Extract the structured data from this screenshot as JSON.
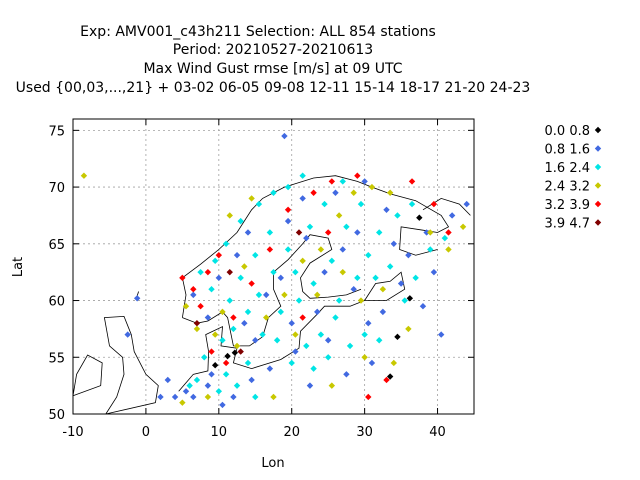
{
  "chart_data": {
    "type": "scatter",
    "title": [
      "Exp: AMV001_c43h211   Selection: ALL    854 stations",
      "Period: 20210527-20210613",
      "Max Wind Gust rmse [m/s] at  09 UTC",
      "Used {00,03,...,21} + 03-02 06-05 09-08 12-11 15-14 18-17 21-20 24-23"
    ],
    "xlabel": "Lon",
    "ylabel": "Lat",
    "xlim": [
      -10,
      45
    ],
    "ylim": [
      50,
      76
    ],
    "xticks": [
      "-10",
      "0",
      "10",
      "20",
      "30",
      "40"
    ],
    "yticks": [
      "50",
      "55",
      "60",
      "65",
      "70",
      "75"
    ],
    "grid": true,
    "legend_position": "right",
    "series": [
      {
        "name": "0.0 0.8",
        "color": "#000000",
        "points": [
          [
            12.2,
            55.4
          ],
          [
            34.5,
            56.8
          ],
          [
            33.5,
            53.3
          ],
          [
            36.2,
            60.2
          ],
          [
            37.5,
            67.3
          ],
          [
            11.2,
            55.1
          ],
          [
            9.5,
            54.3
          ]
        ]
      },
      {
        "name": "0.8 1.6",
        "color": "#4169e1",
        "points": [
          [
            19.0,
            74.5
          ],
          [
            -1.2,
            60.2
          ],
          [
            -2.5,
            57.0
          ],
          [
            3.0,
            53.0
          ],
          [
            5.5,
            52.0
          ],
          [
            8.5,
            52.5
          ],
          [
            12.0,
            51.5
          ],
          [
            14.5,
            53.0
          ],
          [
            20.5,
            55.5
          ],
          [
            25.0,
            56.5
          ],
          [
            30.5,
            58.0
          ],
          [
            32.5,
            59.0
          ],
          [
            35.0,
            61.5
          ],
          [
            38.5,
            66.0
          ],
          [
            42.0,
            67.5
          ],
          [
            44.0,
            68.5
          ],
          [
            22.0,
            65.5
          ],
          [
            27.0,
            64.5
          ],
          [
            14.0,
            66.0
          ],
          [
            12.5,
            64.0
          ],
          [
            8.5,
            58.5
          ],
          [
            16.5,
            60.5
          ],
          [
            18.5,
            62.0
          ],
          [
            24.5,
            62.5
          ],
          [
            28.5,
            61.0
          ],
          [
            26.0,
            69.5
          ],
          [
            30.0,
            70.5
          ],
          [
            21.5,
            69.0
          ],
          [
            19.5,
            67.0
          ],
          [
            10.0,
            62.0
          ],
          [
            6.5,
            60.5
          ],
          [
            34.0,
            65.0
          ],
          [
            39.5,
            62.5
          ],
          [
            40.5,
            57.0
          ],
          [
            31.0,
            54.5
          ],
          [
            27.5,
            53.5
          ],
          [
            22.5,
            52.5
          ],
          [
            17.0,
            54.0
          ],
          [
            9.0,
            53.5
          ],
          [
            6.5,
            51.5
          ],
          [
            4.0,
            51.5
          ],
          [
            13.5,
            58.0
          ],
          [
            15.0,
            56.5
          ],
          [
            23.5,
            59.0
          ],
          [
            20.0,
            58.0
          ],
          [
            29.0,
            66.0
          ],
          [
            33.0,
            68.0
          ],
          [
            36.0,
            64.0
          ],
          [
            38.0,
            59.5
          ],
          [
            10.5,
            50.8
          ],
          [
            2.0,
            51.5
          ]
        ]
      },
      {
        "name": "1.6 2.4",
        "color": "#00e5e5",
        "points": [
          [
            10.0,
            52.0
          ],
          [
            12.5,
            52.5
          ],
          [
            15.0,
            51.5
          ],
          [
            7.0,
            53.0
          ],
          [
            8.0,
            55.0
          ],
          [
            10.5,
            56.5
          ],
          [
            12.0,
            57.5
          ],
          [
            14.0,
            59.0
          ],
          [
            15.5,
            60.5
          ],
          [
            17.5,
            62.5
          ],
          [
            19.5,
            64.5
          ],
          [
            22.5,
            66.5
          ],
          [
            24.5,
            68.5
          ],
          [
            27.0,
            70.5
          ],
          [
            25.5,
            63.5
          ],
          [
            23.0,
            61.5
          ],
          [
            21.0,
            60.0
          ],
          [
            18.5,
            59.0
          ],
          [
            26.5,
            60.0
          ],
          [
            29.0,
            62.0
          ],
          [
            30.5,
            64.0
          ],
          [
            32.0,
            66.0
          ],
          [
            34.5,
            67.5
          ],
          [
            36.5,
            68.5
          ],
          [
            26.0,
            58.5
          ],
          [
            24.0,
            57.0
          ],
          [
            22.0,
            56.0
          ],
          [
            28.0,
            56.0
          ],
          [
            30.0,
            57.0
          ],
          [
            32.0,
            56.5
          ],
          [
            11.5,
            60.0
          ],
          [
            9.0,
            61.0
          ],
          [
            7.5,
            62.5
          ],
          [
            9.5,
            63.5
          ],
          [
            11.0,
            65.0
          ],
          [
            13.0,
            67.0
          ],
          [
            15.5,
            68.5
          ],
          [
            17.5,
            69.5
          ],
          [
            19.5,
            70.0
          ],
          [
            21.5,
            71.0
          ],
          [
            16.0,
            57.0
          ],
          [
            18.0,
            56.5
          ],
          [
            20.0,
            54.5
          ],
          [
            23.0,
            54.0
          ],
          [
            25.0,
            55.0
          ],
          [
            14.0,
            54.5
          ],
          [
            11.0,
            53.5
          ],
          [
            6.0,
            52.5
          ],
          [
            13.0,
            62.0
          ],
          [
            15.0,
            64.0
          ],
          [
            17.0,
            66.0
          ],
          [
            20.5,
            62.5
          ],
          [
            27.5,
            66.5
          ],
          [
            29.5,
            68.5
          ],
          [
            31.5,
            62.0
          ],
          [
            33.5,
            63.0
          ],
          [
            35.5,
            60.0
          ],
          [
            37.0,
            62.0
          ],
          [
            39.0,
            64.5
          ],
          [
            41.0,
            65.5
          ]
        ]
      },
      {
        "name": "2.4 3.2",
        "color": "#c8c800",
        "points": [
          [
            -8.5,
            71.0
          ],
          [
            5.5,
            59.5
          ],
          [
            7.0,
            57.5
          ],
          [
            9.5,
            57.0
          ],
          [
            12.5,
            56.0
          ],
          [
            16.5,
            58.5
          ],
          [
            19.0,
            60.5
          ],
          [
            21.5,
            63.5
          ],
          [
            24.0,
            64.5
          ],
          [
            26.5,
            67.5
          ],
          [
            28.5,
            69.5
          ],
          [
            31.0,
            70.0
          ],
          [
            33.5,
            69.5
          ],
          [
            13.5,
            63.0
          ],
          [
            10.5,
            59.0
          ],
          [
            30.0,
            55.0
          ],
          [
            34.0,
            54.5
          ],
          [
            36.0,
            57.5
          ],
          [
            39.0,
            66.0
          ],
          [
            41.5,
            64.5
          ],
          [
            43.5,
            66.5
          ],
          [
            5.0,
            51.0
          ],
          [
            8.5,
            51.5
          ],
          [
            17.5,
            51.5
          ],
          [
            25.5,
            52.5
          ],
          [
            20.5,
            57.0
          ],
          [
            23.5,
            60.5
          ],
          [
            27.0,
            62.5
          ],
          [
            29.5,
            60.0
          ],
          [
            32.5,
            61.0
          ],
          [
            11.5,
            67.5
          ],
          [
            14.5,
            69.0
          ]
        ]
      },
      {
        "name": "3.2 3.9",
        "color": "#ff0000",
        "points": [
          [
            5.0,
            62.0
          ],
          [
            6.5,
            61.0
          ],
          [
            7.5,
            59.5
          ],
          [
            8.5,
            62.5
          ],
          [
            10.0,
            64.0
          ],
          [
            12.0,
            58.5
          ],
          [
            14.5,
            61.5
          ],
          [
            17.0,
            64.5
          ],
          [
            19.5,
            68.0
          ],
          [
            23.0,
            69.5
          ],
          [
            25.5,
            70.5
          ],
          [
            29.0,
            71.0
          ],
          [
            36.5,
            70.5
          ],
          [
            39.5,
            68.5
          ],
          [
            41.5,
            66.0
          ],
          [
            33.0,
            53.0
          ],
          [
            30.5,
            51.5
          ],
          [
            9.0,
            55.5
          ],
          [
            11.0,
            54.5
          ],
          [
            21.5,
            58.5
          ],
          [
            25.0,
            66.0
          ]
        ]
      },
      {
        "name": "3.9 4.7",
        "color": "#800000",
        "points": [
          [
            7.0,
            58.0
          ],
          [
            11.5,
            62.5
          ],
          [
            21.0,
            66.0
          ],
          [
            13.0,
            55.5
          ]
        ]
      }
    ]
  }
}
